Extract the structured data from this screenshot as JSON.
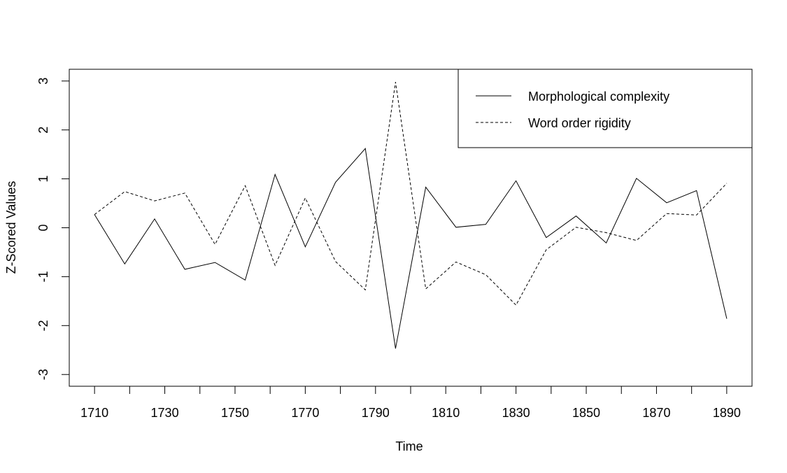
{
  "chart_data": {
    "type": "line",
    "xlabel": "Time",
    "ylabel": "Z-Scored Values",
    "xlim": [
      1702.8,
      1897.2
    ],
    "ylim": [
      -3.24,
      3.24
    ],
    "x_ticks_labeled": [
      1710,
      1730,
      1750,
      1770,
      1790,
      1810,
      1830,
      1850,
      1870,
      1890
    ],
    "x_ticks_minor": [
      1720,
      1740,
      1760,
      1780,
      1800,
      1820,
      1840,
      1860,
      1880
    ],
    "y_ticks": [
      -3,
      -2,
      -1,
      0,
      1,
      2,
      3
    ],
    "legend_position": "top-right",
    "series": [
      {
        "name": "Morphological complexity",
        "line_style": "solid",
        "x": [
          1710,
          1718.6,
          1727.1,
          1735.7,
          1744.3,
          1752.9,
          1761.4,
          1770,
          1778.6,
          1787.1,
          1795.7,
          1804.3,
          1812.9,
          1821.4,
          1830,
          1838.6,
          1847.1,
          1855.7,
          1864.3,
          1872.9,
          1881.4,
          1890
        ],
        "values": [
          0.27,
          -0.74,
          0.18,
          -0.85,
          -0.71,
          -1.07,
          1.09,
          -0.39,
          0.93,
          1.62,
          -2.47,
          0.83,
          0.01,
          0.07,
          0.96,
          -0.2,
          0.24,
          -0.31,
          1.01,
          0.51,
          0.76,
          -1.86
        ]
      },
      {
        "name": "Word order rigidity",
        "line_style": "dashed",
        "x": [
          1710,
          1718.6,
          1727.1,
          1735.7,
          1744.3,
          1752.9,
          1761.4,
          1770,
          1778.6,
          1787.1,
          1795.7,
          1804.3,
          1812.9,
          1821.4,
          1830,
          1838.6,
          1847.1,
          1855.7,
          1864.3,
          1872.9,
          1881.4,
          1890
        ],
        "values": [
          0.27,
          0.74,
          0.55,
          0.71,
          -0.34,
          0.86,
          -0.77,
          0.61,
          -0.69,
          -1.27,
          2.98,
          -1.25,
          -0.7,
          -0.96,
          -1.58,
          -0.45,
          0.01,
          -0.1,
          -0.26,
          0.29,
          0.26,
          0.91
        ]
      }
    ]
  },
  "colors": {
    "line": "#000000",
    "background": "#ffffff"
  }
}
